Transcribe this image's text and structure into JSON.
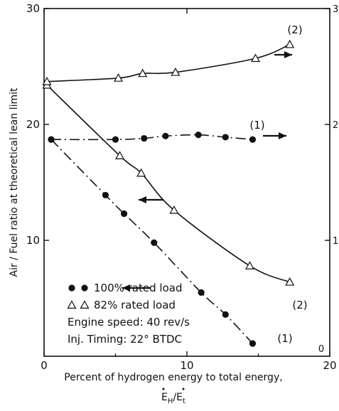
{
  "chart_data": {
    "type": "line",
    "xlabel": "Percent of hydrogen energy to total energy,",
    "xlabel_formula": {
      "base": "E",
      "num_sub": "H",
      "den_sub": "t"
    },
    "ylabel": "Air / Fuel ratio at theoretical lean limit",
    "xlim": [
      0,
      20
    ],
    "ylim": [
      0,
      30
    ],
    "y2lim": [
      0,
      3
    ],
    "x_ticks": [
      0,
      10,
      20
    ],
    "y_ticks": [
      10,
      20,
      30
    ],
    "y2_ticks": [
      1,
      2,
      3
    ],
    "x_tick_labels": [
      "0",
      "10",
      "20"
    ],
    "y_tick_labels": [
      "10",
      "20",
      "30"
    ],
    "y2_tick_labels": [
      "1",
      "2",
      "3"
    ],
    "y2_zero_label": "0",
    "series": [
      {
        "marker": "circle",
        "style": "dashdot",
        "axis": "left",
        "end_label": "(1)",
        "x": [
          0.5,
          4.3,
          5.6,
          7.7,
          11.0,
          12.7,
          14.6
        ],
        "y": [
          18.7,
          13.9,
          12.3,
          9.8,
          5.5,
          3.6,
          1.1
        ]
      },
      {
        "marker": "circle",
        "style": "dashdot",
        "axis": "right",
        "end_label": "(1)",
        "x": [
          0.5,
          5.0,
          7.0,
          8.5,
          10.8,
          12.7,
          14.6
        ],
        "y": [
          1.87,
          1.87,
          1.88,
          1.9,
          1.91,
          1.89,
          1.87
        ]
      },
      {
        "marker": "triangle",
        "style": "solid",
        "axis": "left",
        "end_label": "(2)",
        "x": [
          0.2,
          5.3,
          6.8,
          9.1,
          14.4,
          17.2
        ],
        "y": [
          23.4,
          17.3,
          15.8,
          12.6,
          7.8,
          6.4
        ]
      },
      {
        "marker": "triangle",
        "style": "solid",
        "axis": "right",
        "end_label": "(2)",
        "x": [
          0.2,
          5.2,
          6.9,
          9.2,
          14.8,
          17.2
        ],
        "y": [
          2.37,
          2.4,
          2.44,
          2.45,
          2.57,
          2.69
        ]
      }
    ],
    "legend": {
      "entries": [
        {
          "marker": "circle",
          "label": "100% rated load"
        },
        {
          "marker": "triangle",
          "label": "82% rated load"
        }
      ],
      "notes": [
        "Engine speed: 40 rev/s",
        "Inj. Timing: 22° BTDC"
      ]
    }
  }
}
